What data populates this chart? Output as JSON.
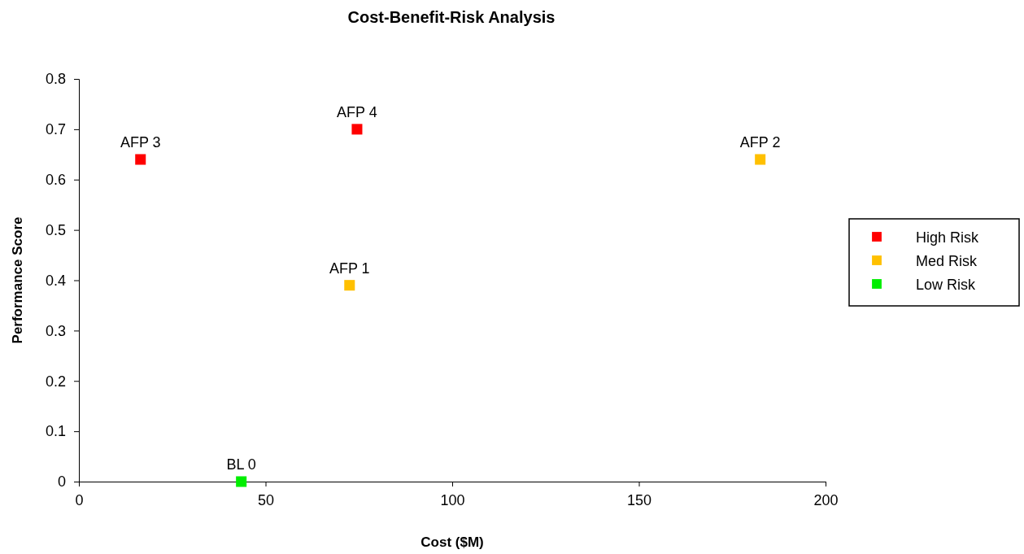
{
  "chart_data": {
    "type": "scatter",
    "title": "Cost-Benefit-Risk Analysis",
    "xlabel": "Cost ($M)",
    "ylabel": "Performance Score",
    "xlim": [
      0,
      200
    ],
    "xticks": [
      0,
      50,
      100,
      150,
      200
    ],
    "ylim": [
      0,
      0.8
    ],
    "yticks": [
      0,
      0.1,
      0.2,
      0.3,
      0.4,
      0.5,
      0.6,
      0.7,
      0.8
    ],
    "grid": false,
    "legend": "right",
    "marker": "square",
    "series": [
      {
        "name": "High Risk",
        "color": "#ff0000",
        "x": [
          16.5,
          74.5
        ],
        "values": [
          0.64,
          0.7
        ]
      },
      {
        "name": "Med Risk",
        "color": "#ffc000",
        "x": [
          72.5,
          182.5
        ],
        "values": [
          0.39,
          0.64
        ]
      },
      {
        "name": "Low Risk",
        "color": "#00ee00",
        "x": [
          43.5
        ],
        "values": [
          0
        ]
      }
    ],
    "annotations": [
      {
        "text": "AFP 3",
        "x": 16.5,
        "y": 0.64
      },
      {
        "text": "AFP 4",
        "x": 74.5,
        "y": 0.7
      },
      {
        "text": "AFP 2",
        "x": 182.5,
        "y": 0.64
      },
      {
        "text": "AFP 1",
        "x": 72.5,
        "y": 0.39
      },
      {
        "text": "BL 0",
        "x": 43.5,
        "y": 0
      }
    ]
  }
}
